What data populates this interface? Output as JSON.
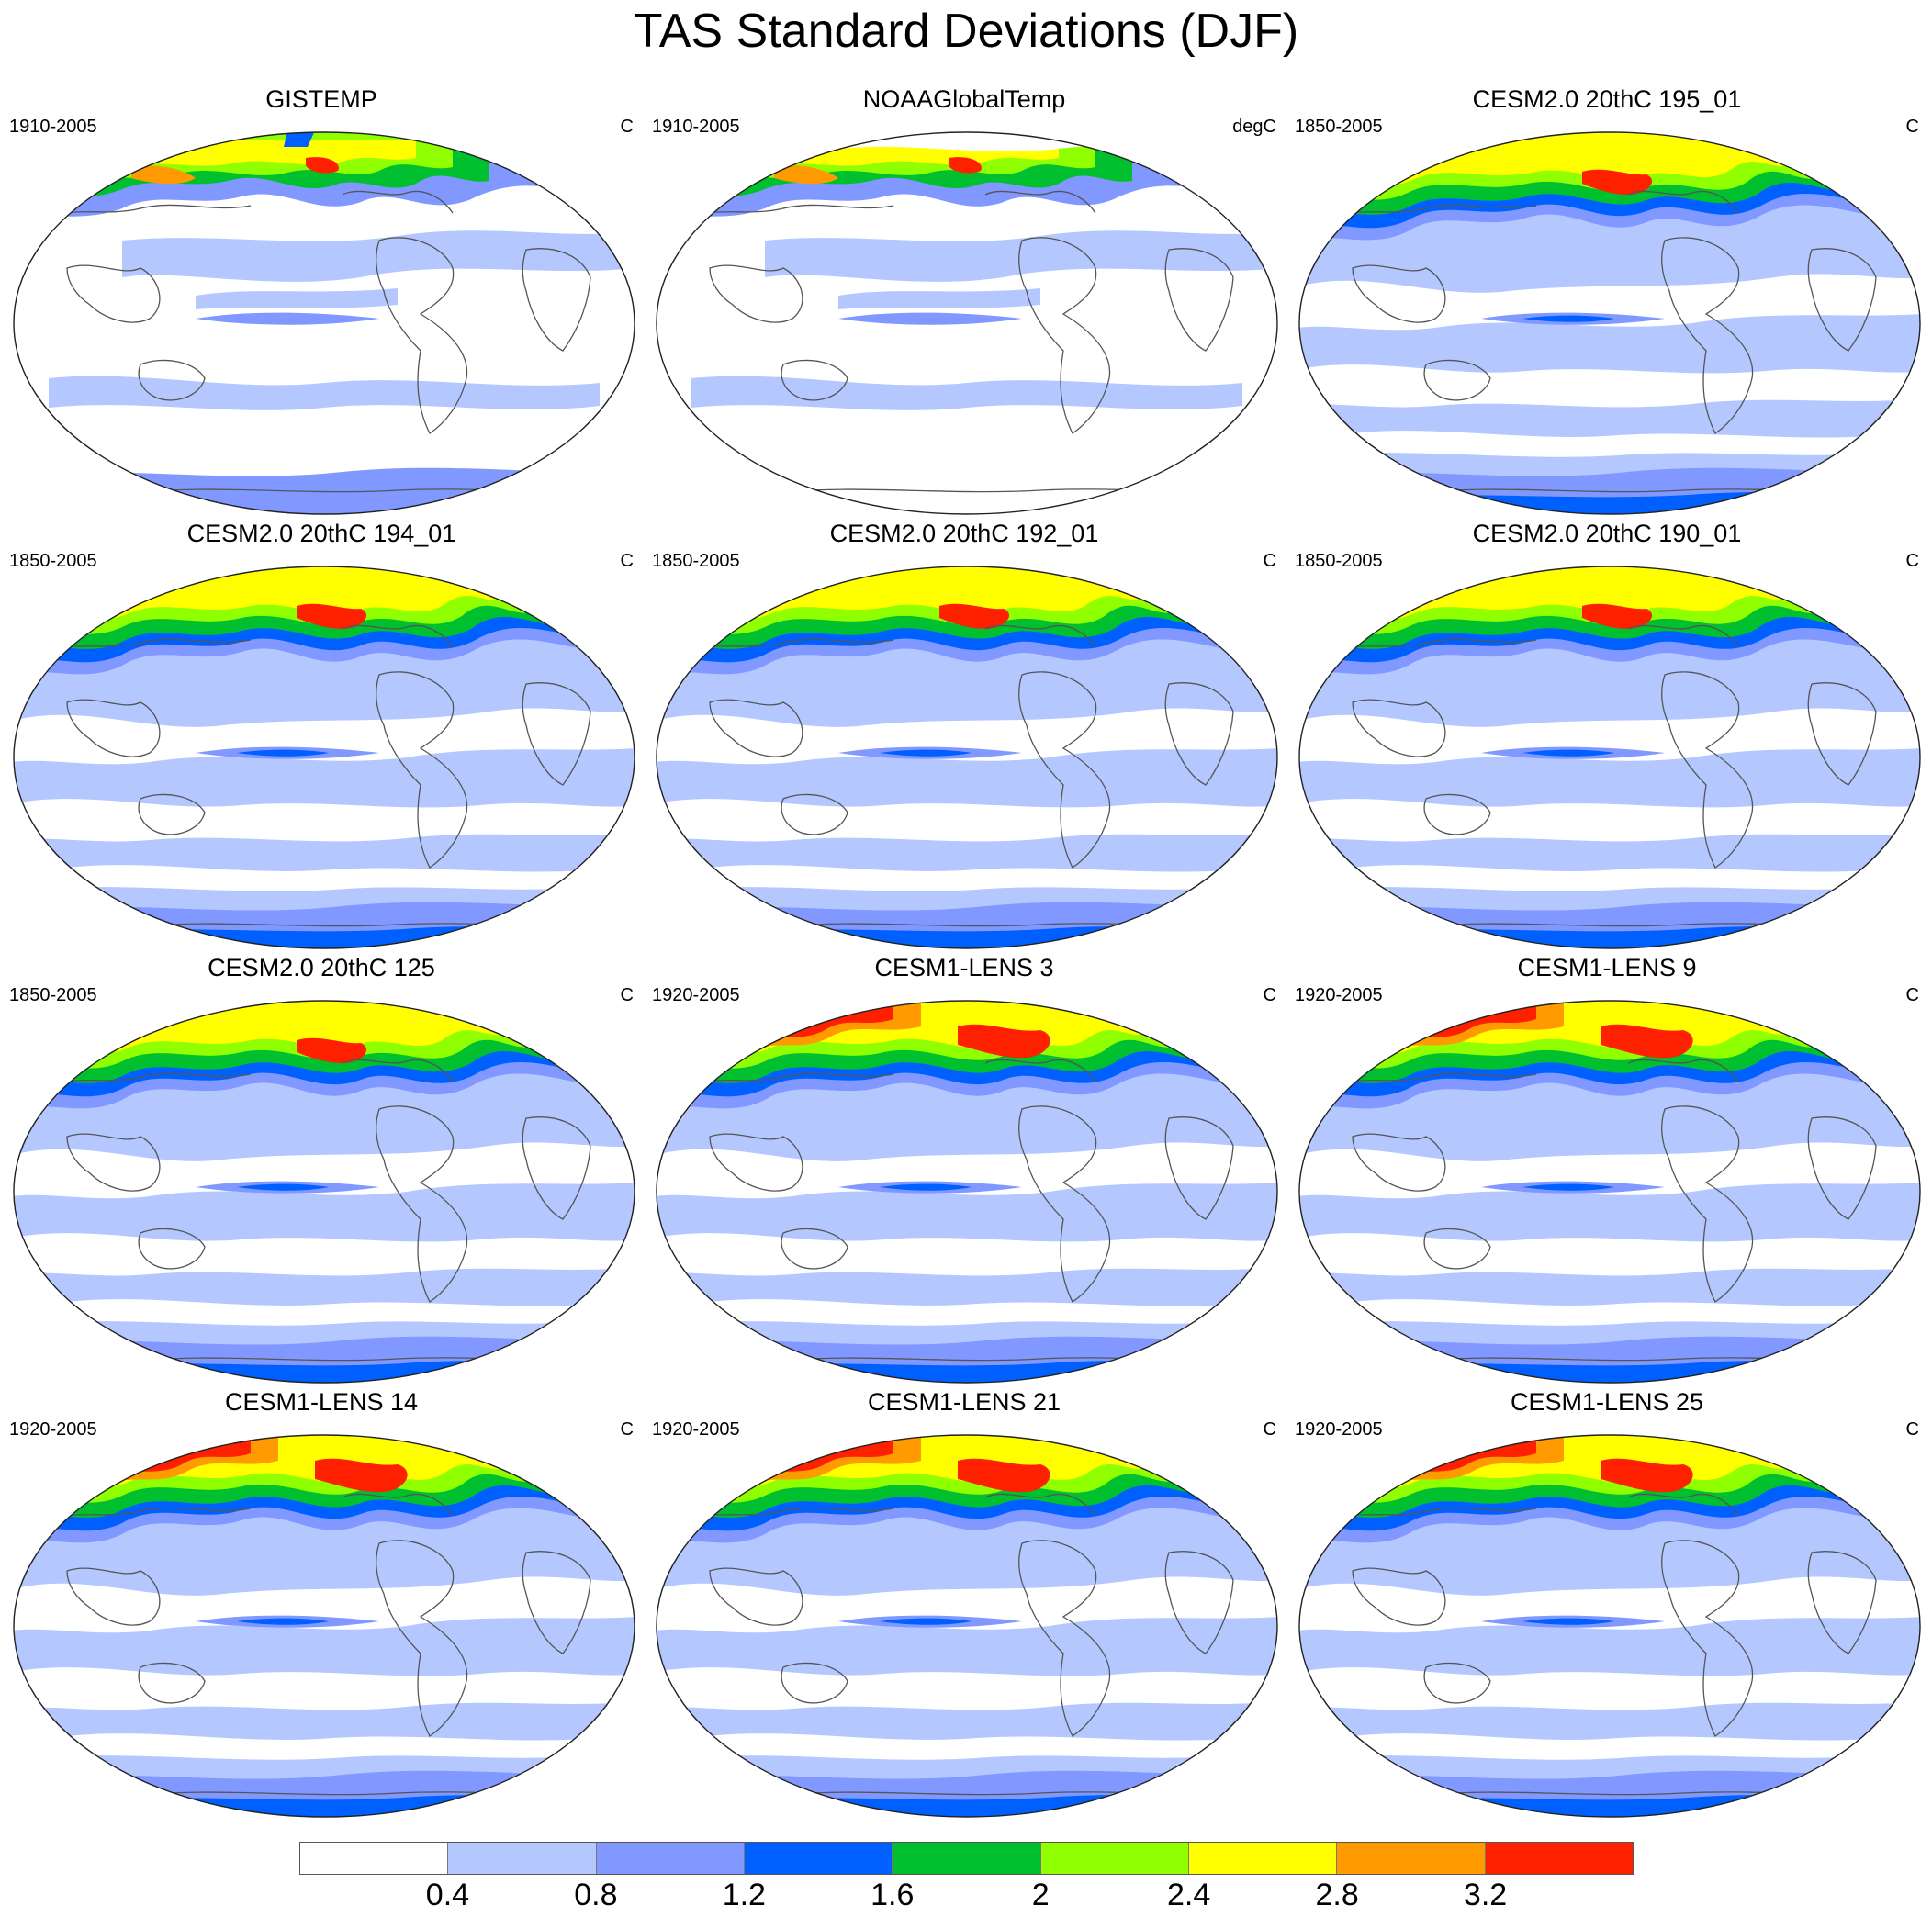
{
  "title": "TAS Standard Deviations (DJF)",
  "panels": [
    {
      "title": "GISTEMP",
      "period": "1910-2005",
      "units": "C",
      "style": "obs1"
    },
    {
      "title": "NOAAGlobalTemp",
      "period": "1910-2005",
      "units": "degC",
      "style": "obs2"
    },
    {
      "title": "CESM2.0 20thC 195_01",
      "period": "1850-2005",
      "units": "C",
      "style": "cesm2"
    },
    {
      "title": "CESM2.0 20thC 194_01",
      "period": "1850-2005",
      "units": "C",
      "style": "cesm2"
    },
    {
      "title": "CESM2.0 20thC 192_01",
      "period": "1850-2005",
      "units": "C",
      "style": "cesm2"
    },
    {
      "title": "CESM2.0 20thC 190_01",
      "period": "1850-2005",
      "units": "C",
      "style": "cesm2"
    },
    {
      "title": "CESM2.0 20thC 125",
      "period": "1850-2005",
      "units": "C",
      "style": "cesm2"
    },
    {
      "title": "CESM1-LENS 3",
      "period": "1920-2005",
      "units": "C",
      "style": "lens"
    },
    {
      "title": "CESM1-LENS 9",
      "period": "1920-2005",
      "units": "C",
      "style": "lens"
    },
    {
      "title": "CESM1-LENS 14",
      "period": "1920-2005",
      "units": "C",
      "style": "lens"
    },
    {
      "title": "CESM1-LENS 21",
      "period": "1920-2005",
      "units": "C",
      "style": "lens"
    },
    {
      "title": "CESM1-LENS 25",
      "period": "1920-2005",
      "units": "C",
      "style": "lens"
    }
  ],
  "colorbar": {
    "labels": [
      "0.4",
      "0.8",
      "1.2",
      "1.6",
      "2",
      "2.4",
      "2.8",
      "3.2"
    ],
    "colors": [
      "#ffffff",
      "#b4c8ff",
      "#8098ff",
      "#0060ff",
      "#00c030",
      "#90ff00",
      "#ffff00",
      "#ff9a00",
      "#ff2000"
    ]
  }
}
